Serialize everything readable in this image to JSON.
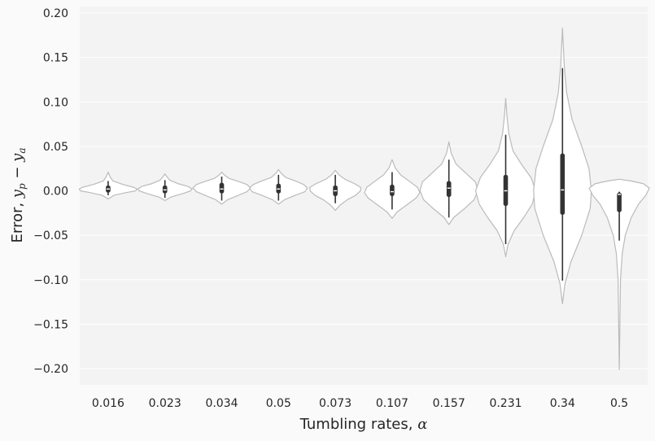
{
  "chart_data": {
    "type": "violin",
    "xlabel": {
      "text": "Tumbling rates, ",
      "math": "α"
    },
    "ylabel": {
      "text": "Error, ",
      "math": "y",
      "sub1": "p",
      "op": " − ",
      "math2": "y",
      "sub2": "a"
    },
    "ylim": [
      -0.22,
      0.2
    ],
    "yticks": [
      0.2,
      0.15,
      0.1,
      0.05,
      0.0,
      -0.05,
      -0.1,
      -0.15,
      -0.2
    ],
    "ytick_labels": [
      "0.20",
      "0.15",
      "0.10",
      "0.05",
      "0.00",
      "−0.05",
      "−0.10",
      "−0.15",
      "−0.20"
    ],
    "grid": true,
    "categories": [
      "0.016",
      "0.023",
      "0.034",
      "0.05",
      "0.073",
      "0.107",
      "0.157",
      "0.231",
      "0.34",
      "0.5"
    ],
    "violins": [
      {
        "category": "0.016",
        "min": -0.009,
        "max": 0.021,
        "q1": -0.002,
        "median": 0.002,
        "q3": 0.006,
        "wlo": -0.005,
        "whi": 0.011,
        "profile": [
          [
            -0.009,
            0
          ],
          [
            -0.005,
            0.1
          ],
          [
            -0.002,
            0.3
          ],
          [
            0.0,
            0.46
          ],
          [
            0.002,
            0.48
          ],
          [
            0.004,
            0.42
          ],
          [
            0.007,
            0.25
          ],
          [
            0.011,
            0.08
          ],
          [
            0.016,
            0.03
          ],
          [
            0.021,
            0
          ]
        ]
      },
      {
        "category": "0.023",
        "min": -0.011,
        "max": 0.019,
        "q1": -0.003,
        "median": 0.001,
        "q3": 0.006,
        "wlo": -0.008,
        "whi": 0.012,
        "profile": [
          [
            -0.011,
            0
          ],
          [
            -0.007,
            0.1
          ],
          [
            -0.003,
            0.3
          ],
          [
            0.0,
            0.43
          ],
          [
            0.002,
            0.45
          ],
          [
            0.005,
            0.38
          ],
          [
            0.008,
            0.22
          ],
          [
            0.012,
            0.08
          ],
          [
            0.016,
            0.03
          ],
          [
            0.019,
            0
          ]
        ]
      },
      {
        "category": "0.034",
        "min": -0.015,
        "max": 0.021,
        "q1": -0.003,
        "median": 0.002,
        "q3": 0.009,
        "wlo": -0.011,
        "whi": 0.016,
        "profile": [
          [
            -0.015,
            0
          ],
          [
            -0.01,
            0.1
          ],
          [
            -0.005,
            0.28
          ],
          [
            -0.001,
            0.42
          ],
          [
            0.003,
            0.48
          ],
          [
            0.007,
            0.42
          ],
          [
            0.01,
            0.3
          ],
          [
            0.014,
            0.12
          ],
          [
            0.018,
            0.04
          ],
          [
            0.021,
            0
          ]
        ]
      },
      {
        "category": "0.05",
        "min": -0.015,
        "max": 0.024,
        "q1": -0.003,
        "median": 0.002,
        "q3": 0.008,
        "wlo": -0.011,
        "whi": 0.018,
        "profile": [
          [
            -0.015,
            0
          ],
          [
            -0.01,
            0.1
          ],
          [
            -0.005,
            0.28
          ],
          [
            -0.001,
            0.44
          ],
          [
            0.003,
            0.48
          ],
          [
            0.007,
            0.42
          ],
          [
            0.011,
            0.28
          ],
          [
            0.015,
            0.12
          ],
          [
            0.02,
            0.04
          ],
          [
            0.024,
            0
          ]
        ]
      },
      {
        "category": "0.073",
        "min": -0.022,
        "max": 0.023,
        "q1": -0.006,
        "median": 0.0,
        "q3": 0.006,
        "wlo": -0.014,
        "whi": 0.018,
        "profile": [
          [
            -0.022,
            0
          ],
          [
            -0.016,
            0.08
          ],
          [
            -0.01,
            0.2
          ],
          [
            -0.005,
            0.34
          ],
          [
            0.0,
            0.42
          ],
          [
            0.004,
            0.42
          ],
          [
            0.008,
            0.32
          ],
          [
            0.013,
            0.16
          ],
          [
            0.018,
            0.06
          ],
          [
            0.023,
            0
          ]
        ]
      },
      {
        "category": "0.107",
        "min": -0.031,
        "max": 0.035,
        "q1": -0.006,
        "median": -0.001,
        "q3": 0.007,
        "wlo": -0.021,
        "whi": 0.021,
        "profile": [
          [
            -0.031,
            0
          ],
          [
            -0.024,
            0.08
          ],
          [
            -0.016,
            0.24
          ],
          [
            -0.008,
            0.4
          ],
          [
            -0.002,
            0.46
          ],
          [
            0.004,
            0.42
          ],
          [
            0.01,
            0.3
          ],
          [
            0.018,
            0.14
          ],
          [
            0.026,
            0.05
          ],
          [
            0.035,
            0
          ]
        ]
      },
      {
        "category": "0.157",
        "min": -0.038,
        "max": 0.055,
        "q1": -0.007,
        "median": 0.003,
        "q3": 0.011,
        "wlo": -0.03,
        "whi": 0.035,
        "profile": [
          [
            -0.038,
            0
          ],
          [
            -0.03,
            0.08
          ],
          [
            -0.02,
            0.26
          ],
          [
            -0.01,
            0.42
          ],
          [
            0.0,
            0.48
          ],
          [
            0.01,
            0.44
          ],
          [
            0.02,
            0.28
          ],
          [
            0.03,
            0.12
          ],
          [
            0.042,
            0.04
          ],
          [
            0.055,
            0
          ]
        ]
      },
      {
        "category": "0.231",
        "min": -0.074,
        "max": 0.104,
        "q1": -0.017,
        "median": 0.0,
        "q3": 0.018,
        "wlo": -0.06,
        "whi": 0.063,
        "profile": [
          [
            -0.074,
            0
          ],
          [
            -0.06,
            0.04
          ],
          [
            -0.045,
            0.14
          ],
          [
            -0.03,
            0.3
          ],
          [
            -0.015,
            0.44
          ],
          [
            0.0,
            0.5
          ],
          [
            0.015,
            0.42
          ],
          [
            0.03,
            0.26
          ],
          [
            0.045,
            0.12
          ],
          [
            0.065,
            0.05
          ],
          [
            0.085,
            0.02
          ],
          [
            0.104,
            0
          ]
        ]
      },
      {
        "category": "0.34",
        "min": -0.127,
        "max": 0.183,
        "q1": -0.027,
        "median": 0.001,
        "q3": 0.042,
        "wlo": -0.101,
        "whi": 0.138,
        "profile": [
          [
            -0.127,
            0
          ],
          [
            -0.105,
            0.04
          ],
          [
            -0.08,
            0.14
          ],
          [
            -0.05,
            0.32
          ],
          [
            -0.02,
            0.46
          ],
          [
            0.0,
            0.48
          ],
          [
            0.025,
            0.44
          ],
          [
            0.05,
            0.32
          ],
          [
            0.08,
            0.16
          ],
          [
            0.11,
            0.07
          ],
          [
            0.14,
            0.03
          ],
          [
            0.183,
            0
          ]
        ]
      },
      {
        "category": "0.5",
        "min": -0.201,
        "max": 0.013,
        "q1": -0.024,
        "median": -0.004,
        "q3": -0.002,
        "wlo": -0.056,
        "whi": -0.001,
        "profile": [
          [
            -0.201,
            0
          ],
          [
            -0.15,
            0.01
          ],
          [
            -0.1,
            0.02
          ],
          [
            -0.07,
            0.05
          ],
          [
            -0.05,
            0.1
          ],
          [
            -0.03,
            0.2
          ],
          [
            -0.015,
            0.32
          ],
          [
            -0.005,
            0.44
          ],
          [
            0.003,
            0.5
          ],
          [
            0.008,
            0.4
          ],
          [
            0.011,
            0.2
          ],
          [
            0.013,
            0
          ]
        ]
      }
    ],
    "colors": {
      "background": "#fafafa",
      "plot_bg": "#f3f3f3",
      "grid": "#ffffff",
      "violin_fill": "#ffffff",
      "violin_edge": "#bbbbbb",
      "box": "#333333",
      "text": "#262626"
    }
  }
}
